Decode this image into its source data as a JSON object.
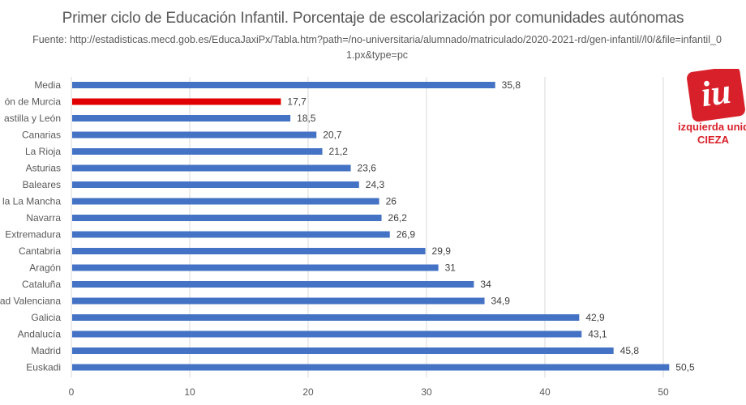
{
  "chart_data": {
    "type": "bar",
    "orientation": "horizontal",
    "title": "Primer ciclo de Educación Infantil. Porcentaje de escolarización por comunidades autónomas",
    "subtitle": "Fuente:  http://estadisticas.mecd.gob.es/EducaJaxiPx/Tabla.htm?path=/no-universitaria/alumnado/matriculado/2020-2021-rd/gen-infantil//l0/&file=infantil_01.px&type=pc",
    "categories": [
      "Media",
      "ón de Murcia",
      "astilla y León",
      "Canarias",
      "La Rioja",
      "Asturias",
      "Baleares",
      "la La Mancha",
      "Navarra",
      "Extremadura",
      "Cantabria",
      "Aragón",
      "Cataluña",
      "ad Valenciana",
      "Galicia",
      "Andalucía",
      "Madrid",
      "Euskadi"
    ],
    "values": [
      35.8,
      17.7,
      18.5,
      20.7,
      21.2,
      23.6,
      24.3,
      26,
      26.2,
      26.9,
      29.9,
      31,
      34,
      34.9,
      42.9,
      43.1,
      45.8,
      50.5
    ],
    "data_labels": [
      "35,8",
      "17,7",
      "18,5",
      "20,7",
      "21,2",
      "23,6",
      "24,3",
      "26",
      "26,2",
      "26,9",
      "29,9",
      "31",
      "34",
      "34,9",
      "42,9",
      "43,1",
      "45,8",
      "50,5"
    ],
    "highlight_index": 1,
    "colors": {
      "bar": "#4472c4",
      "highlight": "#e00000",
      "grid": "#d9d9d9"
    },
    "xlim": [
      0,
      50
    ],
    "xticks": [
      "0",
      "10",
      "20",
      "30",
      "40",
      "50"
    ],
    "grid": true,
    "legend": "none"
  },
  "logo": {
    "text": "izquierda unida-",
    "text2": "CIEZA",
    "mark": "iu"
  }
}
